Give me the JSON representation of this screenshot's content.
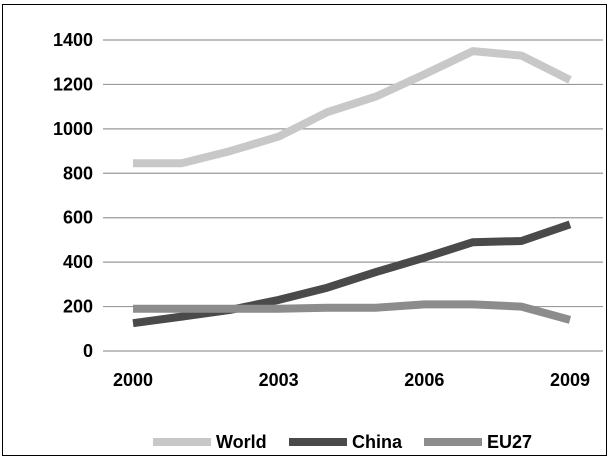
{
  "chart_data": {
    "type": "line",
    "title": "",
    "xlabel": "",
    "ylabel": "",
    "x": [
      2000,
      2001,
      2002,
      2003,
      2004,
      2005,
      2006,
      2007,
      2008,
      2009
    ],
    "x_tick_labels": [
      "2000",
      "2003",
      "2006",
      "2009"
    ],
    "x_tick_values": [
      2000,
      2003,
      2006,
      2009
    ],
    "y_tick_labels": [
      "0",
      "200",
      "400",
      "600",
      "800",
      "1000",
      "1200",
      "1400"
    ],
    "y_tick_values": [
      0,
      200,
      400,
      600,
      800,
      1000,
      1200,
      1400
    ],
    "ylim": [
      0,
      1400
    ],
    "grid": "horizontal",
    "legend_position": "bottom",
    "series": [
      {
        "name": "World",
        "color": "#c8c8c8",
        "values": [
          845,
          845,
          900,
          965,
          1075,
          1145,
          1245,
          1350,
          1330,
          1220
        ]
      },
      {
        "name": "China",
        "color": "#4a4a4a",
        "values": [
          125,
          155,
          185,
          230,
          285,
          355,
          420,
          490,
          495,
          570
        ]
      },
      {
        "name": "EU27",
        "color": "#8c8c8c",
        "values": [
          190,
          190,
          190,
          190,
          195,
          195,
          210,
          210,
          200,
          140
        ]
      }
    ]
  }
}
